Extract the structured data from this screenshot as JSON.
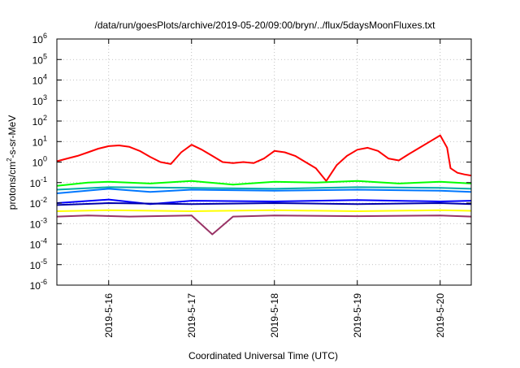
{
  "chart_data": {
    "type": "line",
    "title": "/data/run/goesPlots/archive/2019-05-20/09:00/bryn/../flux/5daysMoonFluxes.txt",
    "xlabel": "Coordinated Universal Time (UTC)",
    "ylabel": {
      "pre": "protons/cm",
      "sup": "2",
      "post": "-s-sr-MeV"
    },
    "y_scale": "log",
    "ylim": [
      1e-06,
      1000000.0
    ],
    "y_ticks": [
      {
        "value": 1e-06,
        "base": "10",
        "exp": "-6"
      },
      {
        "value": 1e-05,
        "base": "10",
        "exp": "-5"
      },
      {
        "value": 0.0001,
        "base": "10",
        "exp": "-4"
      },
      {
        "value": 0.001,
        "base": "10",
        "exp": "-3"
      },
      {
        "value": 0.01,
        "base": "10",
        "exp": "-2"
      },
      {
        "value": 0.1,
        "base": "10",
        "exp": "-1"
      },
      {
        "value": 1,
        "base": "10",
        "exp": "0"
      },
      {
        "value": 10,
        "base": "10",
        "exp": "1"
      },
      {
        "value": 100,
        "base": "10",
        "exp": "2"
      },
      {
        "value": 1000,
        "base": "10",
        "exp": "3"
      },
      {
        "value": 10000,
        "base": "10",
        "exp": "4"
      },
      {
        "value": 100000,
        "base": "10",
        "exp": "5"
      },
      {
        "value": 1000000,
        "base": "10",
        "exp": "6"
      }
    ],
    "xlim": [
      "2019-05-15 09:00",
      "2019-05-20 09:00"
    ],
    "x_ticks": [
      "2019-5-16",
      "2019-5-17",
      "2019-5-18",
      "2019-5-19",
      "2019-5-20"
    ],
    "x_tick_dates": [
      "2019-05-16 00:00",
      "2019-05-17 00:00",
      "2019-05-18 00:00",
      "2019-05-19 00:00",
      "2019-05-20 00:00"
    ],
    "grid": true,
    "legend": "none",
    "series": [
      {
        "color": "#ff0000",
        "points": [
          [
            "2019-05-15 09:00",
            1.1
          ],
          [
            "2019-05-15 12:00",
            1.5
          ],
          [
            "2019-05-15 15:00",
            2.0
          ],
          [
            "2019-05-15 18:00",
            3.0
          ],
          [
            "2019-05-15 21:00",
            4.5
          ],
          [
            "2019-05-16 00:00",
            6.0
          ],
          [
            "2019-05-16 03:00",
            6.5
          ],
          [
            "2019-05-16 06:00",
            5.5
          ],
          [
            "2019-05-16 09:00",
            3.5
          ],
          [
            "2019-05-16 12:00",
            1.8
          ],
          [
            "2019-05-16 15:00",
            1.0
          ],
          [
            "2019-05-16 18:00",
            0.8
          ],
          [
            "2019-05-16 21:00",
            3.0
          ],
          [
            "2019-05-17 00:00",
            7.0
          ],
          [
            "2019-05-17 03:00",
            4.0
          ],
          [
            "2019-05-17 06:00",
            2.0
          ],
          [
            "2019-05-17 09:00",
            1.0
          ],
          [
            "2019-05-17 12:00",
            0.9
          ],
          [
            "2019-05-17 15:00",
            1.0
          ],
          [
            "2019-05-17 18:00",
            0.9
          ],
          [
            "2019-05-17 21:00",
            1.5
          ],
          [
            "2019-05-18 00:00",
            3.5
          ],
          [
            "2019-05-18 03:00",
            3.0
          ],
          [
            "2019-05-18 06:00",
            2.0
          ],
          [
            "2019-05-18 09:00",
            1.0
          ],
          [
            "2019-05-18 12:00",
            0.5
          ],
          [
            "2019-05-18 15:00",
            0.12
          ],
          [
            "2019-05-18 18:00",
            0.7
          ],
          [
            "2019-05-18 21:00",
            2.0
          ],
          [
            "2019-05-19 00:00",
            4.0
          ],
          [
            "2019-05-19 03:00",
            5.0
          ],
          [
            "2019-05-19 06:00",
            3.5
          ],
          [
            "2019-05-19 09:00",
            1.5
          ],
          [
            "2019-05-19 12:00",
            1.2
          ],
          [
            "2019-05-19 15:00",
            2.5
          ],
          [
            "2019-05-19 18:00",
            5.0
          ],
          [
            "2019-05-19 21:00",
            10.0
          ],
          [
            "2019-05-20 00:00",
            20.0
          ],
          [
            "2019-05-20 02:00",
            5.0
          ],
          [
            "2019-05-20 03:00",
            0.5
          ],
          [
            "2019-05-20 05:00",
            0.3
          ],
          [
            "2019-05-20 07:00",
            0.25
          ],
          [
            "2019-05-20 09:00",
            0.22
          ]
        ]
      },
      {
        "color": "#00ff00",
        "points": [
          [
            "2019-05-15 09:00",
            0.07
          ],
          [
            "2019-05-15 18:00",
            0.1
          ],
          [
            "2019-05-16 00:00",
            0.11
          ],
          [
            "2019-05-16 12:00",
            0.09
          ],
          [
            "2019-05-17 00:00",
            0.12
          ],
          [
            "2019-05-17 12:00",
            0.08
          ],
          [
            "2019-05-18 00:00",
            0.11
          ],
          [
            "2019-05-18 12:00",
            0.1
          ],
          [
            "2019-05-19 00:00",
            0.12
          ],
          [
            "2019-05-19 12:00",
            0.09
          ],
          [
            "2019-05-20 00:00",
            0.11
          ],
          [
            "2019-05-20 09:00",
            0.09
          ]
        ]
      },
      {
        "color": "#00aaaa",
        "points": [
          [
            "2019-05-15 09:00",
            0.045
          ],
          [
            "2019-05-16 00:00",
            0.06
          ],
          [
            "2019-05-17 00:00",
            0.055
          ],
          [
            "2019-05-18 00:00",
            0.05
          ],
          [
            "2019-05-19 00:00",
            0.06
          ],
          [
            "2019-05-20 00:00",
            0.055
          ],
          [
            "2019-05-20 09:00",
            0.05
          ]
        ]
      },
      {
        "color": "#0077ff",
        "points": [
          [
            "2019-05-15 09:00",
            0.03
          ],
          [
            "2019-05-16 00:00",
            0.05
          ],
          [
            "2019-05-16 12:00",
            0.035
          ],
          [
            "2019-05-17 00:00",
            0.045
          ],
          [
            "2019-05-18 00:00",
            0.04
          ],
          [
            "2019-05-19 00:00",
            0.045
          ],
          [
            "2019-05-20 00:00",
            0.04
          ],
          [
            "2019-05-20 09:00",
            0.035
          ]
        ]
      },
      {
        "color": "#0000ff",
        "points": [
          [
            "2019-05-15 09:00",
            0.01
          ],
          [
            "2019-05-16 00:00",
            0.015
          ],
          [
            "2019-05-16 12:00",
            0.009
          ],
          [
            "2019-05-17 00:00",
            0.013
          ],
          [
            "2019-05-18 00:00",
            0.012
          ],
          [
            "2019-05-19 00:00",
            0.014
          ],
          [
            "2019-05-20 00:00",
            0.012
          ],
          [
            "2019-05-20 09:00",
            0.013
          ]
        ]
      },
      {
        "color": "#0000aa",
        "points": [
          [
            "2019-05-15 09:00",
            0.008
          ],
          [
            "2019-05-16 00:00",
            0.01
          ],
          [
            "2019-05-17 00:00",
            0.009
          ],
          [
            "2019-05-18 00:00",
            0.01
          ],
          [
            "2019-05-19 00:00",
            0.009
          ],
          [
            "2019-05-20 00:00",
            0.01
          ],
          [
            "2019-05-20 09:00",
            0.009
          ]
        ]
      },
      {
        "color": "#ffff00",
        "points": [
          [
            "2019-05-15 09:00",
            0.004
          ],
          [
            "2019-05-16 00:00",
            0.0045
          ],
          [
            "2019-05-17 00:00",
            0.004
          ],
          [
            "2019-05-18 00:00",
            0.0045
          ],
          [
            "2019-05-19 00:00",
            0.004
          ],
          [
            "2019-05-20 00:00",
            0.0045
          ],
          [
            "2019-05-20 09:00",
            0.0042
          ]
        ]
      },
      {
        "color": "#993366",
        "points": [
          [
            "2019-05-15 09:00",
            0.0022
          ],
          [
            "2019-05-15 18:00",
            0.0025
          ],
          [
            "2019-05-16 06:00",
            0.0022
          ],
          [
            "2019-05-17 00:00",
            0.0025
          ],
          [
            "2019-05-17 06:00",
            0.0003
          ],
          [
            "2019-05-17 12:00",
            0.0022
          ],
          [
            "2019-05-18 00:00",
            0.0025
          ],
          [
            "2019-05-19 00:00",
            0.0023
          ],
          [
            "2019-05-20 00:00",
            0.0025
          ],
          [
            "2019-05-20 09:00",
            0.0022
          ]
        ]
      }
    ]
  }
}
